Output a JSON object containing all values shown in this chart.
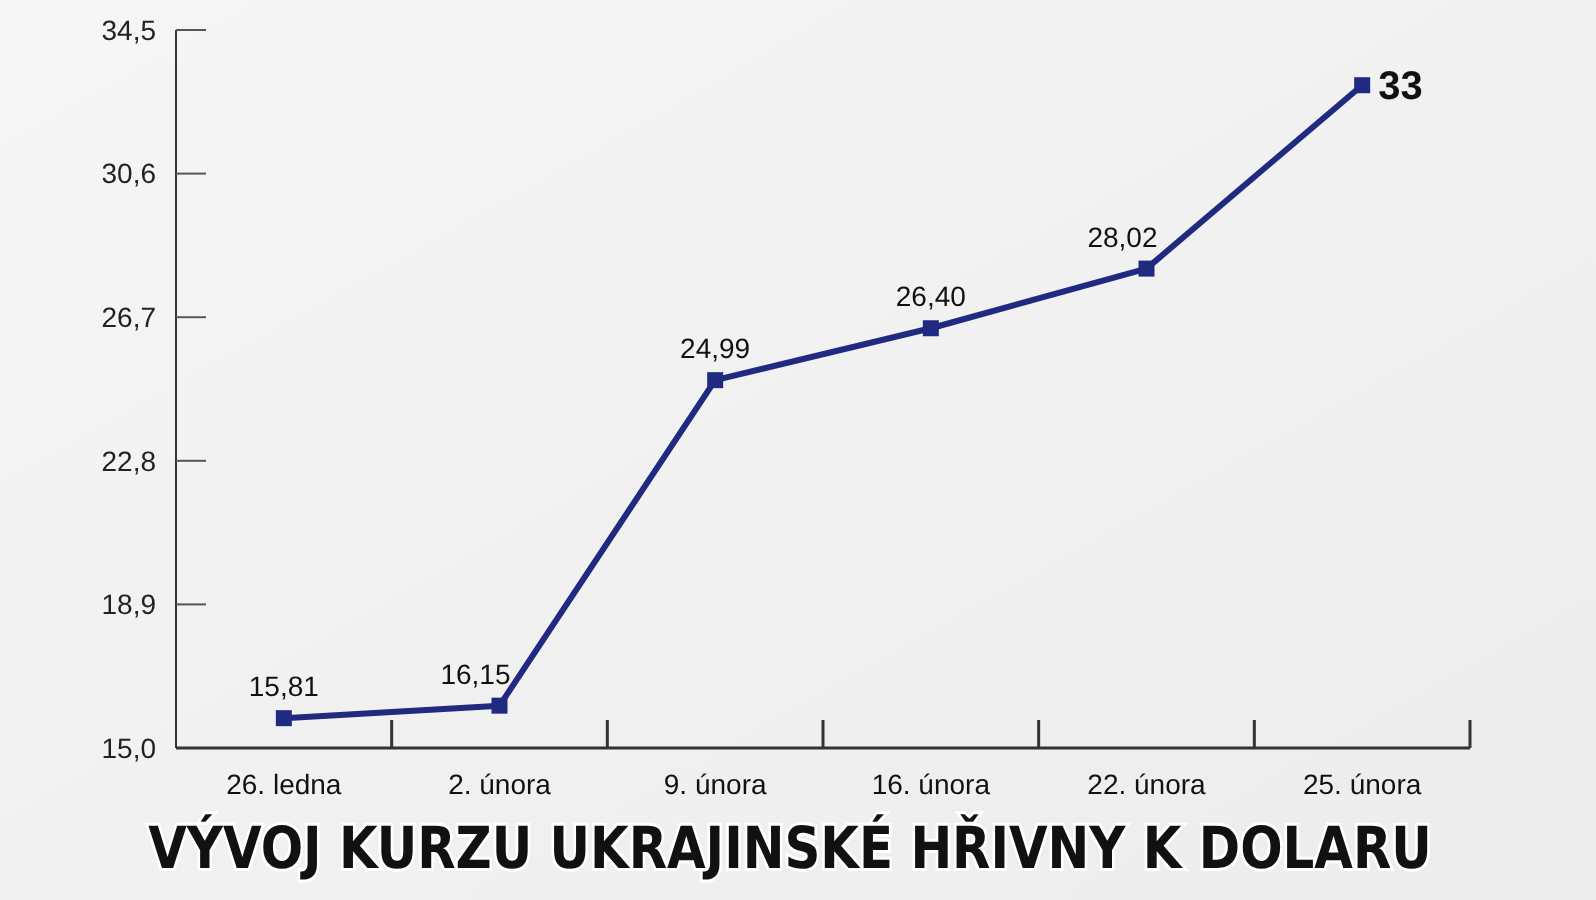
{
  "chart_data": {
    "type": "line",
    "title": "VÝVOJ KURZU UKRAJINSKÉ HŘIVNY K DOLARU",
    "categories": [
      "26. ledna",
      "2. února",
      "9. února",
      "16. února",
      "22. února",
      "25. února"
    ],
    "series": [
      {
        "color": "#1f2a80",
        "values": [
          15.81,
          16.15,
          24.99,
          26.4,
          28.02,
          33
        ],
        "value_labels": [
          "15,81",
          "16,15",
          "24,99",
          "26,40",
          "28,02",
          "33"
        ]
      }
    ],
    "ylim": [
      15.0,
      34.5
    ],
    "yticks": [
      {
        "value": 15.0,
        "label": "15,0"
      },
      {
        "value": 18.9,
        "label": "18,9"
      },
      {
        "value": 22.8,
        "label": "22,8"
      },
      {
        "value": 26.7,
        "label": "26,7"
      },
      {
        "value": 30.6,
        "label": "30,6"
      },
      {
        "value": 34.5,
        "label": "34,5"
      }
    ],
    "grid": false,
    "marker": "square",
    "line_style": "solid"
  }
}
